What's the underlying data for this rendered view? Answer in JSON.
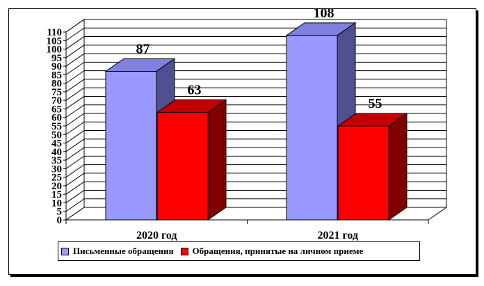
{
  "chart_data": {
    "type": "bar",
    "categories": [
      "2020 год",
      "2021 год"
    ],
    "series": [
      {
        "name": "Письменные обращения",
        "values": [
          87,
          108
        ],
        "color": "#9999ff"
      },
      {
        "name": "Обращения, принятые на личном приеме",
        "values": [
          63,
          55
        ],
        "color": "#ff0000"
      }
    ],
    "ylim": [
      0,
      110
    ],
    "yticks": [
      0,
      5,
      10,
      15,
      20,
      25,
      30,
      35,
      40,
      45,
      50,
      55,
      60,
      65,
      70,
      75,
      80,
      85,
      90,
      95,
      100,
      105,
      110
    ],
    "grid": true,
    "legend": "bottom",
    "three_d": true
  }
}
